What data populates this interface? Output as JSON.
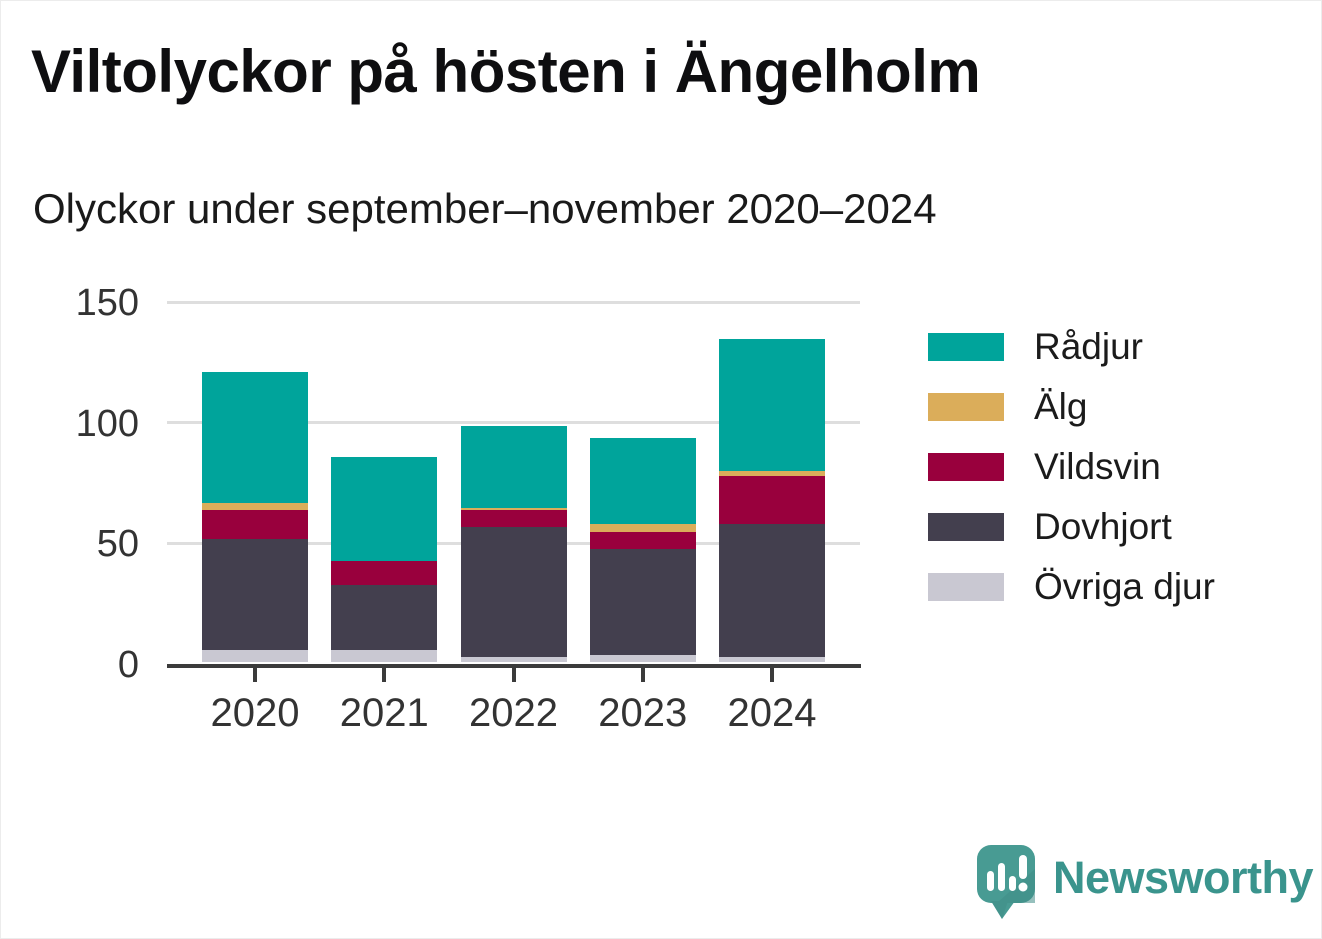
{
  "chart_data": {
    "type": "bar",
    "stacked": true,
    "title": "Viltolyckor på hösten i Ängelholm",
    "subtitle": "Olyckor under september–november 2020–2024",
    "categories": [
      "2020",
      "2021",
      "2022",
      "2023",
      "2024"
    ],
    "series": [
      {
        "key": "ovriga-djur",
        "name": "Övriga djur",
        "color": "#c9c8d2",
        "values": [
          5,
          5,
          2,
          3,
          2
        ]
      },
      {
        "key": "dovhjort",
        "name": "Dovhjort",
        "color": "#433f4e",
        "values": [
          46,
          27,
          54,
          44,
          55
        ]
      },
      {
        "key": "vildsvin",
        "name": "Vildsvin",
        "color": "#99003d",
        "values": [
          12,
          10,
          7,
          7,
          20
        ]
      },
      {
        "key": "alg",
        "name": "Älg",
        "color": "#dbad5a",
        "values": [
          3,
          0,
          1,
          3,
          2
        ]
      },
      {
        "key": "radjur",
        "name": "Rådjur",
        "color": "#00a49b",
        "values": [
          54,
          43,
          34,
          36,
          55
        ]
      }
    ],
    "totals": [
      120,
      85,
      98,
      93,
      134
    ],
    "ylim": [
      0,
      150
    ],
    "yticks": [
      0,
      50,
      100,
      150
    ],
    "xlabel": "",
    "ylabel": "",
    "grid": "horizontal",
    "legend_position": "right",
    "legend_order_top_to_bottom": [
      "Rådjur",
      "Älg",
      "Vildsvin",
      "Dovhjort",
      "Övriga djur"
    ]
  },
  "footer": {
    "brand": "Newsworthy",
    "brand_color": "#3a948d",
    "logo_bubble_color": "#489b93"
  },
  "colors": {
    "background": "#ffffff",
    "gridline": "#dedede",
    "axis": "#3b3b3b",
    "tick_text": "#333333",
    "title_text": "#0e0e10"
  }
}
